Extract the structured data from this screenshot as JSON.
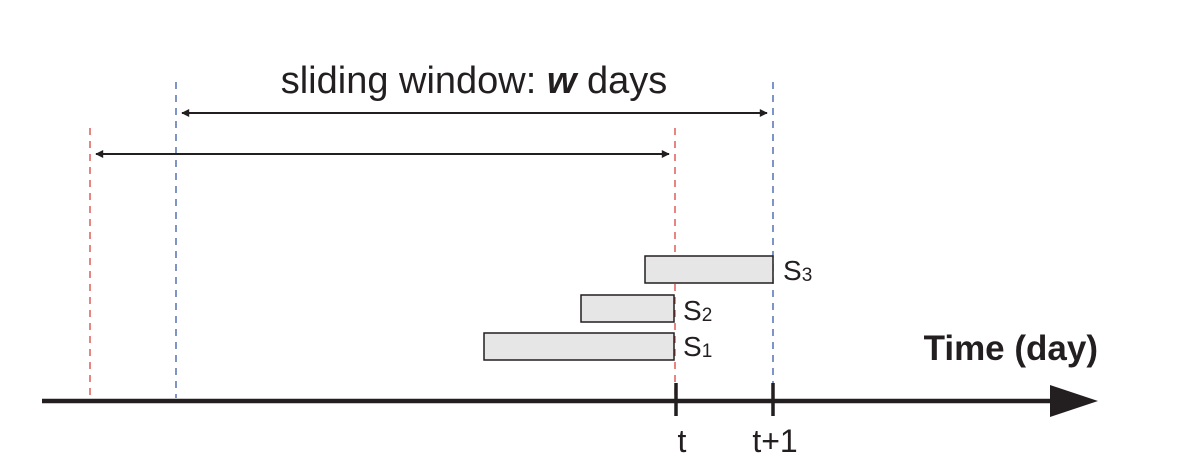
{
  "title": {
    "prefix": "sliding window: ",
    "variable": "w",
    "suffix": " days"
  },
  "axis": {
    "label": "Time (day)",
    "ticks": [
      "t",
      "t+1"
    ]
  },
  "segments": [
    {
      "label": "S",
      "index": "3"
    },
    {
      "label": "S",
      "index": "2"
    },
    {
      "label": "S",
      "index": "1"
    }
  ],
  "colors": {
    "ink": "#231f20",
    "red_dash": "#d9443f",
    "blue_dash": "#3b5aa8",
    "box_fill": "#e6e6e6",
    "box_stroke": "#231f20"
  }
}
